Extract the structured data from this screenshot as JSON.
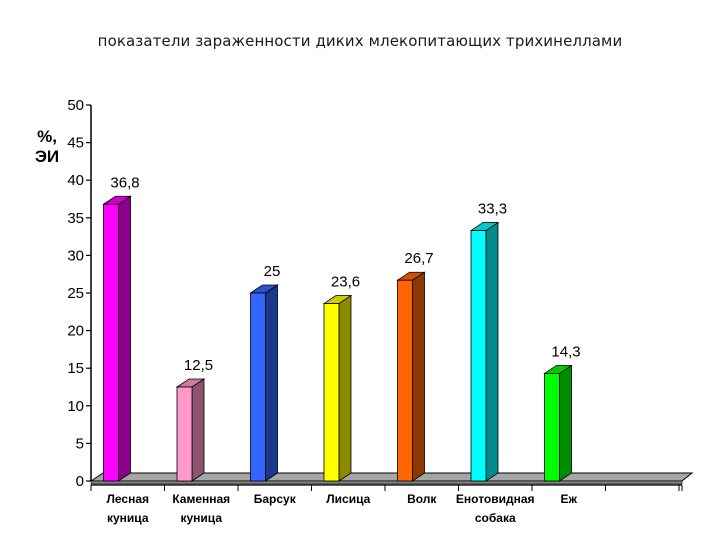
{
  "page": {
    "title": "показатели зараженности диких млекопитающих трихинеллами"
  },
  "chart_data": {
    "type": "bar",
    "title": "показатели зараженности диких млекопитающих трихинеллами",
    "ylabel": [
      "%,",
      "ЭИ"
    ],
    "xlabel": "",
    "ylim": [
      0,
      50
    ],
    "yticks": [
      "0",
      "5",
      "10",
      "15",
      "20",
      "25",
      "30",
      "35",
      "40",
      "45",
      "50"
    ],
    "categories": [
      [
        "Лесная",
        "куница"
      ],
      [
        "Каменная",
        "куница"
      ],
      [
        "Барсук"
      ],
      [
        "Лисица"
      ],
      [
        "Волк"
      ],
      [
        "Енотовидная",
        "собака"
      ],
      [
        "Еж"
      ]
    ],
    "values": [
      36.8,
      12.5,
      25,
      23.6,
      26.7,
      33.3,
      14.3
    ],
    "data_labels": [
      "36,8",
      "12,5",
      "25",
      "23,6",
      "26,7",
      "33,3",
      "14,3"
    ],
    "colors": [
      "#ff00ff",
      "#ff99cc",
      "#3366ff",
      "#ffff00",
      "#ff6600",
      "#00ffff",
      "#00ff00"
    ],
    "grid": false,
    "legend": "none"
  }
}
